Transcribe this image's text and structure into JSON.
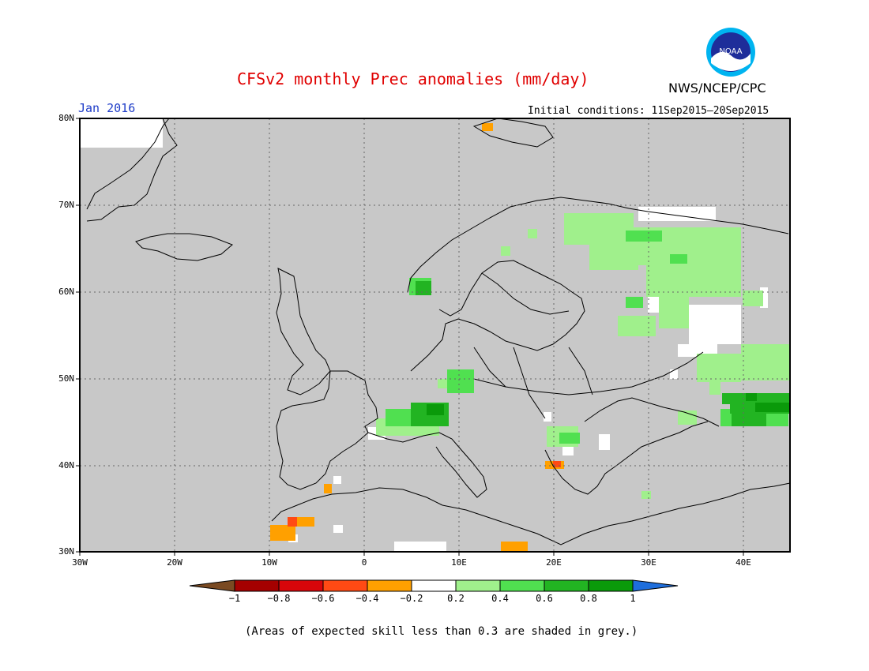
{
  "header": {
    "title": "CFSv2 monthly Prec anomalies (mm/day)",
    "agency": "NWS/NCEP/CPC",
    "target_month": "Jan 2016",
    "initial_conditions": "Initial conditions: 11Sep2015–20Sep2015"
  },
  "logo": {
    "text": "NOAA"
  },
  "map": {
    "lat_labels": [
      "80N",
      "70N",
      "60N",
      "50N",
      "40N",
      "30N"
    ],
    "lon_labels": [
      "30W",
      "20W",
      "10W",
      "0",
      "10E",
      "20E",
      "30E",
      "40E"
    ],
    "extent": {
      "lon": [
        -30,
        45
      ],
      "lat": [
        30,
        80
      ]
    },
    "grey_skill_color": "#c8c8c8"
  },
  "colorbar": {
    "tick_labels": [
      "−1",
      "−0.8",
      "−0.6",
      "−0.4",
      "−0.2",
      "0.2",
      "0.4",
      "0.6",
      "0.8",
      "1"
    ],
    "colors": [
      "#7a4a22",
      "#a50000",
      "#d8060a",
      "#ff4a14",
      "#ffa000",
      "#ffffff",
      "#a0f08c",
      "#50e050",
      "#22b422",
      "#0a9a0a",
      "#1e6edc"
    ]
  },
  "footnote": "(Areas of expected skill less than 0.3 are shaded in grey.)"
}
